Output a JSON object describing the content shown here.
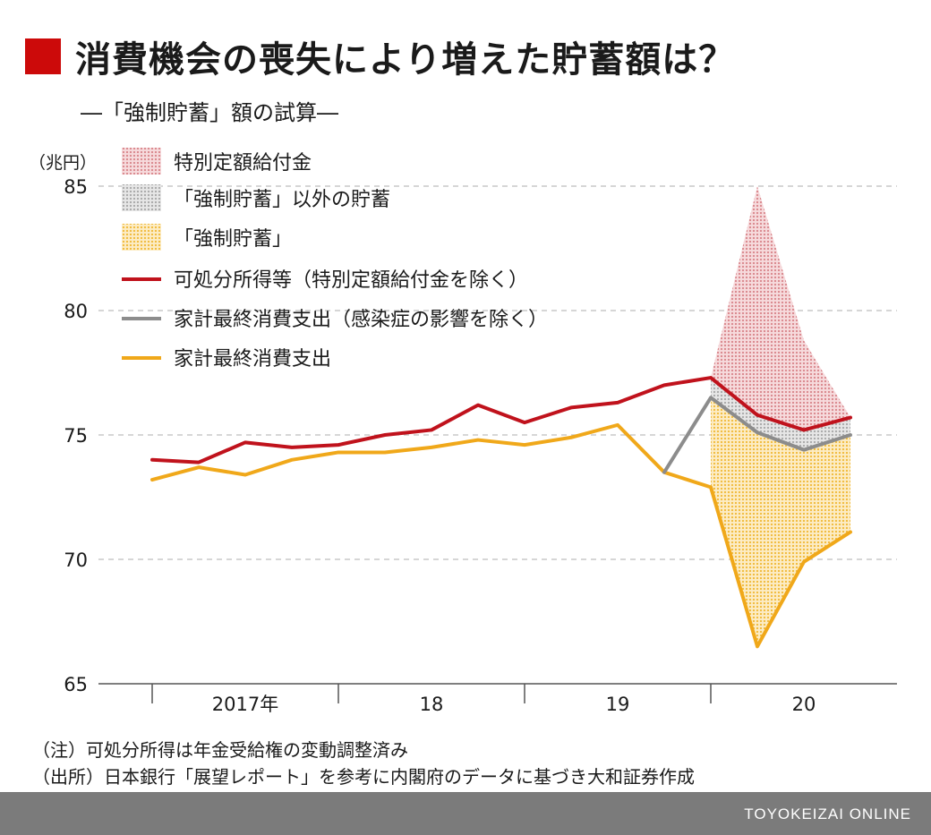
{
  "header": {
    "title": "消費機会の喪失により増えた貯蓄額は？",
    "subtitle": "―「強制貯蓄」額の試算―",
    "accent_color": "#cc0a0a"
  },
  "chart_data": {
    "type": "line",
    "unit_label": "（兆円）",
    "ylim": [
      65,
      85
    ],
    "y_ticks": [
      65,
      70,
      75,
      80,
      85
    ],
    "grid": "horizontal dashed",
    "legend_position": "top-left",
    "x_group_labels": [
      "2017年",
      "18",
      "19",
      "20"
    ],
    "x": [
      "2017Q1",
      "2017Q2",
      "2017Q3",
      "2017Q4",
      "2018Q1",
      "2018Q2",
      "2018Q3",
      "2018Q4",
      "2019Q1",
      "2019Q2",
      "2019Q3",
      "2019Q4",
      "2020Q1",
      "2020Q2",
      "2020Q3",
      "2020Q4"
    ],
    "series": [
      {
        "name": "可処分所得等（特別定額給付金を除く）",
        "color": "#c0121c",
        "values": [
          74.0,
          73.9,
          74.7,
          74.5,
          74.6,
          75.0,
          75.2,
          76.2,
          75.5,
          76.1,
          76.3,
          77.0,
          77.3,
          75.8,
          75.2,
          75.7
        ]
      },
      {
        "name": "家計最終消費支出（感染症の影響を除く）",
        "color": "#8c8c8c",
        "values": [
          null,
          null,
          null,
          null,
          null,
          null,
          null,
          null,
          null,
          null,
          null,
          73.5,
          76.5,
          75.1,
          74.4,
          75.0
        ]
      },
      {
        "name": "家計最終消費支出",
        "color": "#f0a81a",
        "values": [
          73.2,
          73.7,
          73.4,
          74.0,
          74.3,
          74.3,
          74.5,
          74.8,
          74.6,
          74.9,
          75.4,
          73.5,
          72.9,
          66.5,
          69.9,
          71.1
        ]
      }
    ],
    "areas": [
      {
        "name": "特別定額給付金",
        "color": "#d9868c",
        "x": [
          "2020Q1",
          "2020Q2",
          "2020Q3",
          "2020Q4"
        ],
        "upper": [
          77.3,
          85.0,
          78.8,
          75.7
        ],
        "lower": [
          77.3,
          75.8,
          75.2,
          75.7
        ]
      },
      {
        "name": "「強制貯蓄」以外の貯蓄",
        "color": "#b3b3b3",
        "x": [
          "2020Q1",
          "2020Q2",
          "2020Q3",
          "2020Q4"
        ],
        "upper": [
          77.3,
          75.8,
          75.2,
          75.7
        ],
        "lower": [
          76.5,
          75.1,
          74.4,
          75.0
        ]
      },
      {
        "name": "「強制貯蓄」",
        "color": "#f5c64a",
        "x": [
          "2020Q1",
          "2020Q2",
          "2020Q3",
          "2020Q4"
        ],
        "upper": [
          76.5,
          75.1,
          74.4,
          75.0
        ],
        "lower": [
          72.9,
          66.5,
          69.9,
          71.1
        ]
      }
    ]
  },
  "notes": [
    "（注）可処分所得は年金受給権の変動調整済み",
    "（出所）日本銀行「展望レポート」を参考に内閣府のデータに基づき大和証券作成"
  ],
  "footer": {
    "brand": "TOYOKEIZAI ONLINE"
  }
}
